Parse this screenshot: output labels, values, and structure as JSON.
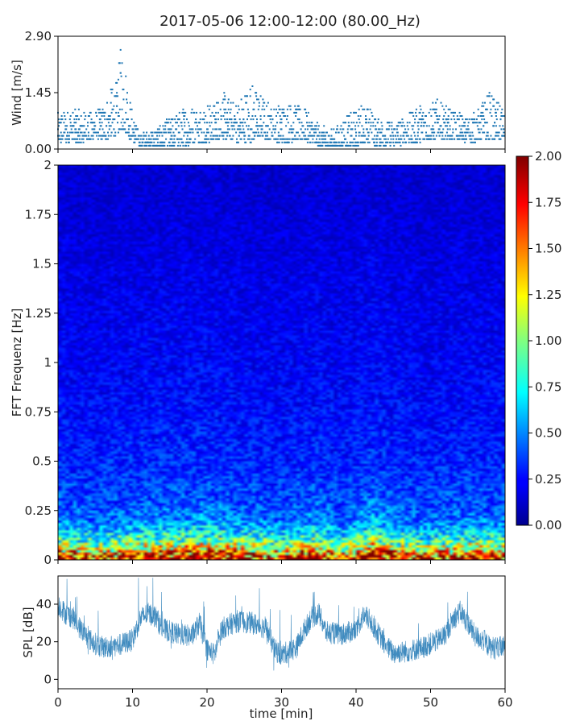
{
  "title": "2017-05-06 12:00-12:00 (80.00_Hz)",
  "colors": {
    "series": "#1f77b4",
    "axis": "#000000",
    "text": "#222222"
  },
  "chart_data": [
    {
      "id": "wind",
      "type": "scatter",
      "ylabel": "Wind [m/s]",
      "xlim": [
        0,
        60
      ],
      "ylim": [
        0,
        2.9
      ],
      "yticks": [
        0,
        1.45,
        2.9
      ],
      "ytick_labels": [
        "0.00",
        "1.45",
        "2.90"
      ],
      "xticks": [
        0,
        10,
        20,
        30,
        40,
        50,
        60
      ],
      "level_step": 0.085,
      "envelope": {
        "t": [
          0,
          2,
          4,
          6,
          7,
          8,
          8.5,
          9,
          9.5,
          10,
          11,
          13,
          15,
          17,
          19,
          21,
          22,
          24,
          26,
          27,
          29,
          31,
          33,
          35,
          37,
          39,
          41,
          43,
          45,
          47,
          49,
          51,
          53,
          55,
          56,
          57,
          58,
          59,
          60
        ],
        "low": [
          0.2,
          0.15,
          0.2,
          0.25,
          0.3,
          0.4,
          0.5,
          0.45,
          0.3,
          0.2,
          0.1,
          0.05,
          0.05,
          0.1,
          0.15,
          0.2,
          0.3,
          0.2,
          0.2,
          0.3,
          0.2,
          0.2,
          0.25,
          0.05,
          0.05,
          0.05,
          0.15,
          0.1,
          0.1,
          0.15,
          0.2,
          0.3,
          0.25,
          0.2,
          0.2,
          0.25,
          0.2,
          0.25,
          0.3
        ],
        "high": [
          0.9,
          1.05,
          0.95,
          1.05,
          1.5,
          1.8,
          2.85,
          2.2,
          1.6,
          0.9,
          0.4,
          0.5,
          0.8,
          1.05,
          1.1,
          1.2,
          1.45,
          1.2,
          1.75,
          1.45,
          1.1,
          1.2,
          1.05,
          0.6,
          0.5,
          0.9,
          1.2,
          0.8,
          0.7,
          0.9,
          1.2,
          1.25,
          1.0,
          0.8,
          1.0,
          1.3,
          1.45,
          1.2,
          1.0
        ]
      }
    },
    {
      "id": "spectrogram",
      "type": "heatmap",
      "ylabel": "FFT Frequenz [Hz]",
      "xlim": [
        0,
        60
      ],
      "ylim": [
        0,
        2
      ],
      "yticks": [
        0,
        0.25,
        0.5,
        0.75,
        1,
        1.25,
        1.5,
        1.75,
        2
      ],
      "ytick_labels": [
        "0",
        "0.25",
        "0.5",
        "0.75",
        "1",
        "1.25",
        "1.5",
        "1.75",
        "2"
      ],
      "xticks": [
        0,
        10,
        20,
        30,
        40,
        50,
        60
      ],
      "color_range": [
        0,
        2
      ],
      "colorbar_ticks": [
        0,
        0.25,
        0.5,
        0.75,
        1.0,
        1.25,
        1.5,
        1.75,
        2.0
      ],
      "colorbar_tick_labels": [
        "0.00",
        "0.25",
        "0.50",
        "0.75",
        "1.00",
        "1.25",
        "1.50",
        "1.75",
        "2.00"
      ],
      "colormap": "jet",
      "n_time_bins": 120,
      "n_freq_bins": 160,
      "profile_freq": [
        0.0,
        0.03,
        0.06,
        0.1,
        0.15,
        0.2,
        0.3,
        0.5,
        0.75,
        1.0,
        1.5,
        2.0
      ],
      "profile_value": [
        1.9,
        1.6,
        1.2,
        0.9,
        0.65,
        0.5,
        0.4,
        0.32,
        0.27,
        0.24,
        0.2,
        0.16
      ],
      "time_gain_t": [
        0,
        5,
        10,
        15,
        20,
        25,
        30,
        35,
        38,
        42,
        46,
        50,
        55,
        60
      ],
      "time_gain": [
        1.0,
        0.9,
        1.0,
        1.05,
        1.1,
        1.0,
        0.9,
        1.1,
        0.85,
        1.2,
        0.95,
        0.9,
        1.0,
        0.95
      ]
    },
    {
      "id": "spl",
      "type": "line",
      "ylabel": "SPL [dB]",
      "xlabel": "time [min]",
      "xlim": [
        0,
        60
      ],
      "ylim": [
        -5,
        55
      ],
      "yticks": [
        0,
        20,
        40
      ],
      "ytick_labels": [
        "0",
        "20",
        "40"
      ],
      "xticks": [
        0,
        10,
        20,
        30,
        40,
        50,
        60
      ],
      "xtick_labels": [
        "0",
        "10",
        "20",
        "30",
        "40",
        "50",
        "60"
      ],
      "trend": {
        "t": [
          0,
          1,
          2,
          3,
          4,
          5,
          6,
          8,
          10,
          11,
          12,
          13,
          14,
          16,
          18,
          19,
          20,
          21,
          22,
          24,
          26,
          28,
          29,
          30,
          32,
          33,
          34,
          35,
          36,
          38,
          40,
          41,
          42,
          43,
          44,
          45,
          47,
          49,
          51,
          52,
          53,
          54,
          55,
          56,
          57,
          58,
          60
        ],
        "v": [
          40,
          35,
          33,
          27,
          22,
          19,
          17,
          18,
          21,
          32,
          35,
          34,
          27,
          24,
          23,
          30,
          16,
          13,
          27,
          31,
          30,
          27,
          16,
          13,
          17,
          26,
          33,
          35,
          25,
          24,
          26,
          34,
          31,
          24,
          18,
          14,
          15,
          17,
          21,
          24,
          32,
          36,
          30,
          23,
          21,
          17,
          17
        ]
      }
    }
  ]
}
